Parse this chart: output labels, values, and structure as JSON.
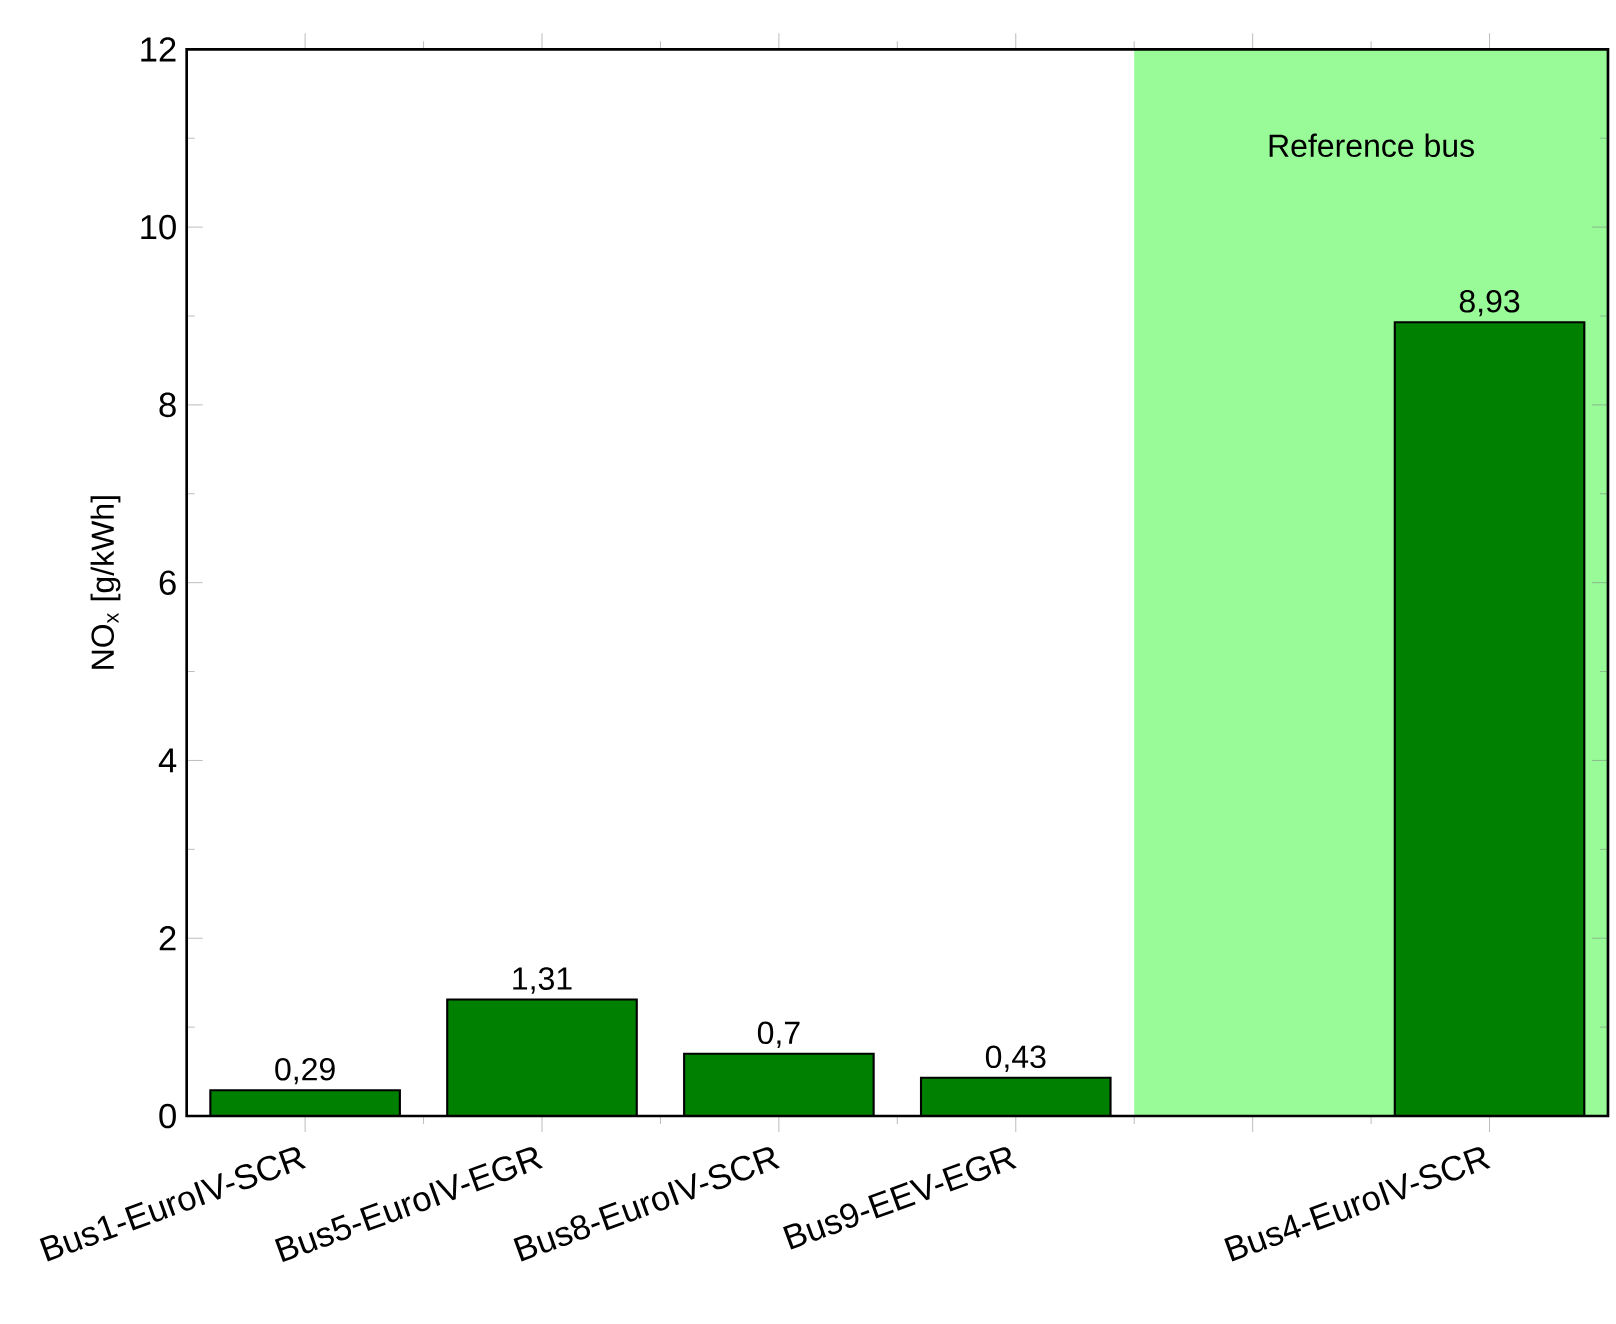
{
  "chart_data": {
    "type": "bar",
    "ylabel": "NO$_{x}$ [g/kWh]",
    "categories": [
      "Bus1-EuroIV-SCR",
      "Bus5-EuroIV-EGR",
      "Bus8-EuroIV-SCR",
      "Bus9-EEV-EGR",
      null,
      "Bus4-EuroIV-SCR"
    ],
    "values": [
      0.29,
      1.31,
      0.7,
      0.43,
      null,
      8.93
    ],
    "value_labels": [
      "0,29",
      "1,31",
      "0,7",
      "0,43",
      null,
      "8,93"
    ],
    "color": "#008000",
    "ylim": [
      0,
      12
    ],
    "yticks": [
      0,
      2,
      4,
      6,
      8,
      10,
      12
    ],
    "annotations": [
      "Reference bus"
    ]
  }
}
